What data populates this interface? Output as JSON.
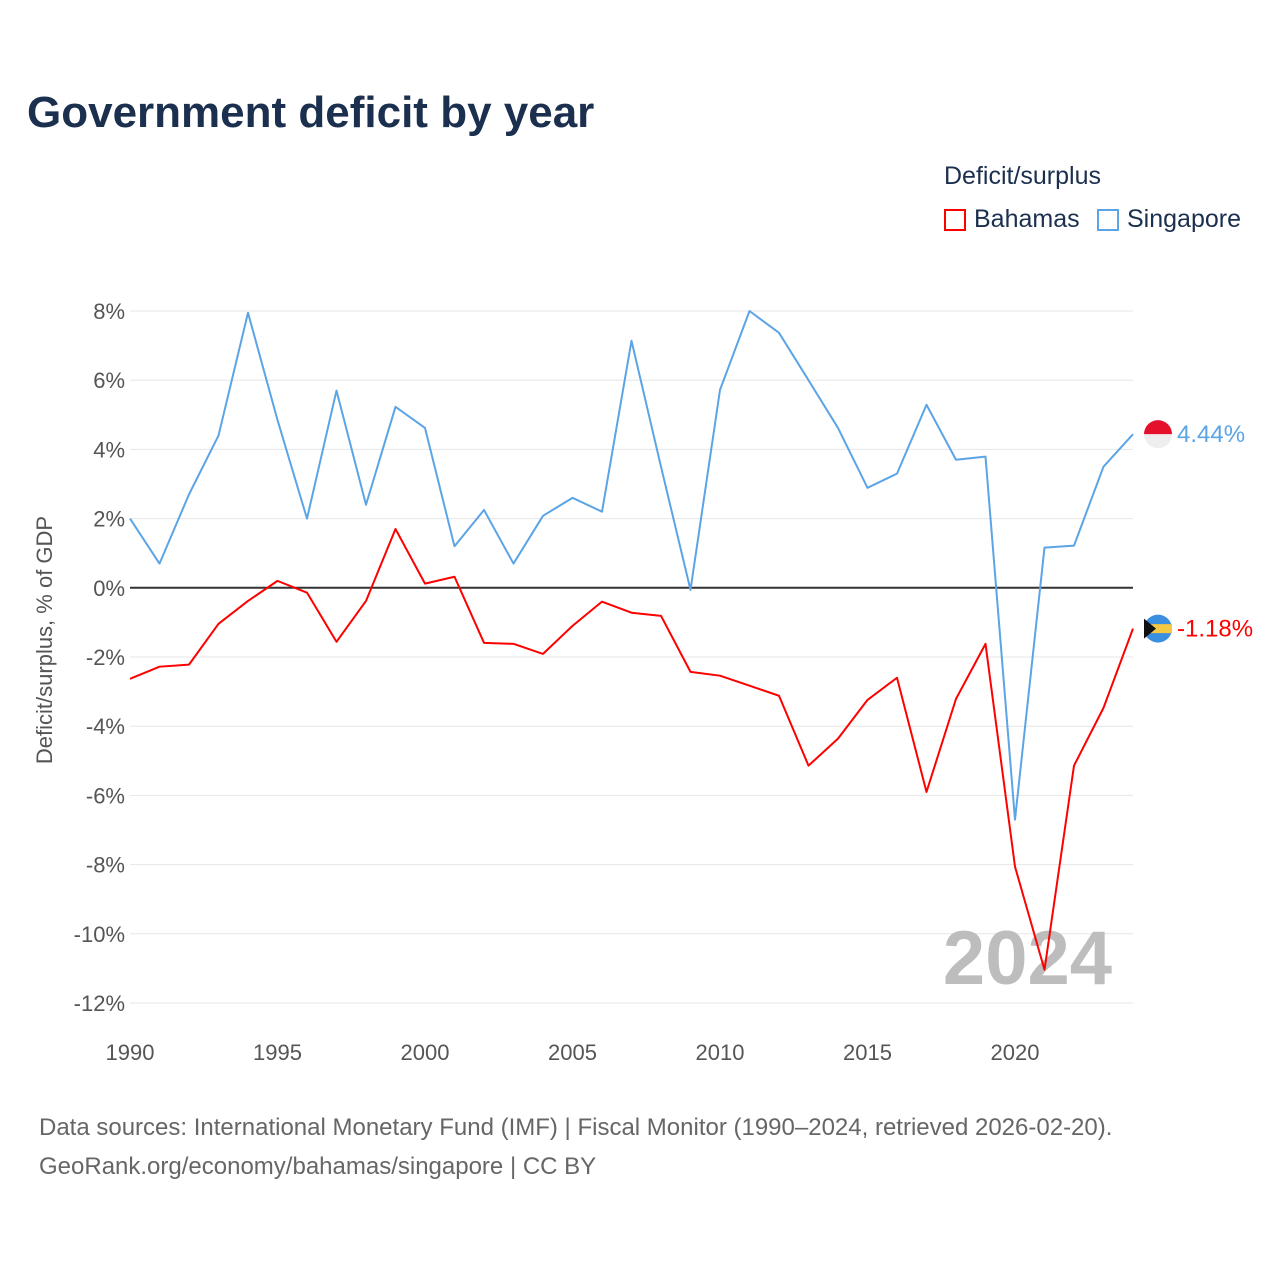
{
  "title": "Government deficit by year",
  "legend": {
    "title": "Deficit/surplus",
    "items": [
      {
        "name": "Bahamas",
        "color": "#ff0000"
      },
      {
        "name": "Singapore",
        "color": "#5ba4e6"
      }
    ]
  },
  "source": {
    "line1": "Data sources: International Monetary Fund (IMF) | Fiscal Monitor (1990–2024, retrieved 2026-02-20).",
    "line2": "GeoRank.org/economy/bahamas/singapore | CC BY"
  },
  "chart_data": {
    "type": "line",
    "title": "Government deficit by year",
    "xlabel": "",
    "ylabel": "Deficit/surplus, % of GDP",
    "year_watermark": "2024",
    "xlim": [
      1990,
      2024
    ],
    "ylim": [
      -12,
      8
    ],
    "x_ticks": [
      1990,
      1995,
      2000,
      2005,
      2010,
      2015,
      2020
    ],
    "y_ticks": [
      8,
      6,
      4,
      2,
      0,
      -2,
      -4,
      -6,
      -8,
      -10,
      -12
    ],
    "y_tick_labels": [
      "8%",
      "6%",
      "4%",
      "2%",
      "0%",
      "-2%",
      "-4%",
      "-6%",
      "-8%",
      "-10%",
      "-12%"
    ],
    "x": [
      1990,
      1991,
      1992,
      1993,
      1994,
      1995,
      1996,
      1997,
      1998,
      1999,
      2000,
      2001,
      2002,
      2003,
      2004,
      2005,
      2006,
      2007,
      2008,
      2009,
      2010,
      2011,
      2012,
      2013,
      2014,
      2015,
      2016,
      2017,
      2018,
      2019,
      2020,
      2021,
      2022,
      2023,
      2024
    ],
    "series": [
      {
        "name": "Singapore",
        "color": "#5ba4e6",
        "end_label": "4.44%",
        "values": [
          2.0,
          0.7,
          2.7,
          4.4,
          7.95,
          4.85,
          2.0,
          5.7,
          2.4,
          5.23,
          4.62,
          1.2,
          2.25,
          0.7,
          2.08,
          2.6,
          2.2,
          7.14,
          3.5,
          -0.06,
          5.72,
          8.0,
          7.37,
          6.0,
          4.62,
          2.89,
          3.3,
          5.29,
          3.7,
          3.79,
          -6.7,
          1.16,
          1.22,
          3.5,
          4.44
        ]
      },
      {
        "name": "Bahamas",
        "color": "#ff0000",
        "end_label": "-1.18%",
        "values": [
          -2.63,
          -2.28,
          -2.22,
          -1.04,
          -0.38,
          0.2,
          -0.14,
          -1.56,
          -0.38,
          1.7,
          0.12,
          0.32,
          -1.59,
          -1.62,
          -1.91,
          -1.1,
          -0.4,
          -0.72,
          -0.81,
          -2.43,
          -2.54,
          -2.83,
          -3.12,
          -5.14,
          -4.36,
          -3.24,
          -2.6,
          -5.9,
          -3.21,
          -1.62,
          -8.06,
          -11.04,
          -5.14,
          -3.47,
          -1.18
        ]
      }
    ]
  }
}
